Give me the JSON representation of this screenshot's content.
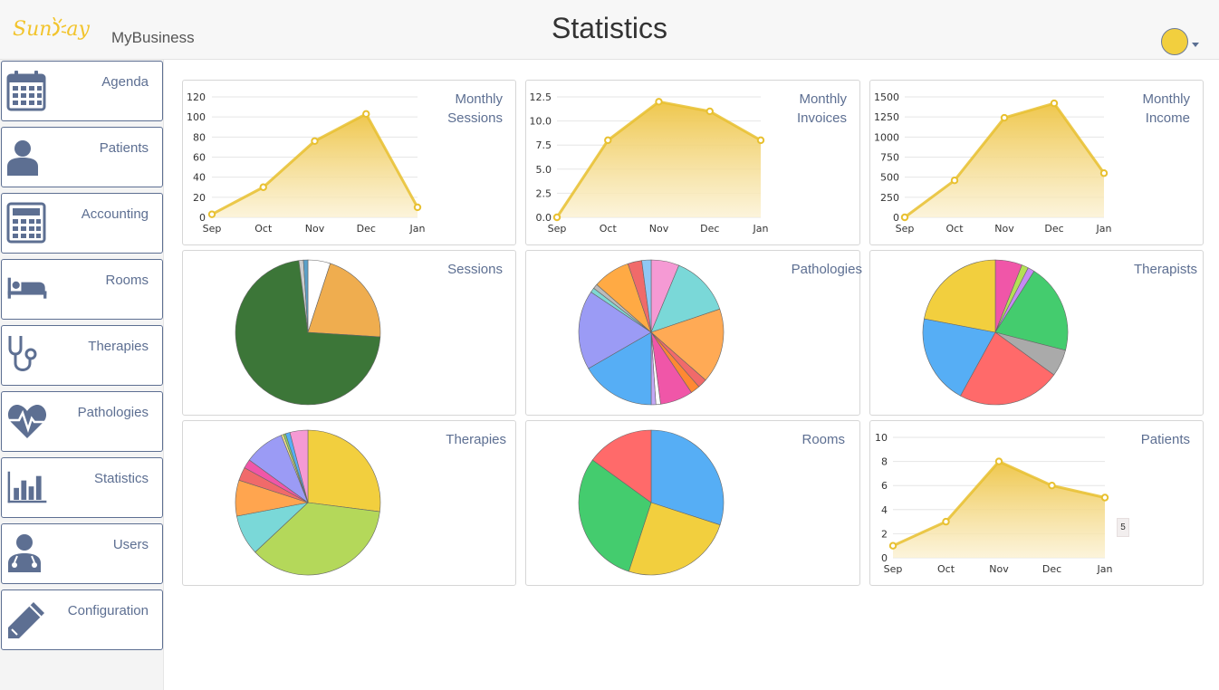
{
  "header": {
    "logo_text_1": "Sun",
    "logo_text_2": "ay",
    "app_name": "MyBusiness",
    "title": "Statistics"
  },
  "sidebar": {
    "items": [
      {
        "label": "Agenda",
        "icon": "calendar-icon"
      },
      {
        "label": "Patients",
        "icon": "person-icon"
      },
      {
        "label": "Accounting",
        "icon": "calculator-icon"
      },
      {
        "label": "Rooms",
        "icon": "bed-icon"
      },
      {
        "label": "Therapies",
        "icon": "stethoscope-icon"
      },
      {
        "label": "Pathologies",
        "icon": "heartbeat-icon"
      },
      {
        "label": "Statistics",
        "icon": "bar-chart-icon"
      },
      {
        "label": "Users",
        "icon": "doctor-icon"
      },
      {
        "label": "Configuration",
        "icon": "pencil-icon"
      }
    ]
  },
  "colors": {
    "accent": "#5d6f92",
    "line": "#e8c02f",
    "brand": "#f2c42c"
  },
  "cards": {
    "monthly_sessions": {
      "title_1": "Monthly",
      "title_2": "Sessions"
    },
    "monthly_invoices": {
      "title_1": "Monthly",
      "title_2": "Invoices"
    },
    "monthly_income": {
      "title_1": "Monthly",
      "title_2": "Income"
    },
    "sessions": {
      "title": "Sessions"
    },
    "pathologies": {
      "title": "Pathologies"
    },
    "therapists": {
      "title": "Therapists"
    },
    "therapies": {
      "title": "Therapies"
    },
    "rooms": {
      "title": "Rooms"
    },
    "patients": {
      "title": "Patients"
    }
  },
  "tooltip": {
    "value": "5"
  },
  "chart_data": [
    {
      "id": "monthly_sessions",
      "type": "area",
      "categories": [
        "Sep",
        "Oct",
        "Nov",
        "Dec",
        "Jan"
      ],
      "values": [
        3,
        30,
        76,
        103,
        10
      ],
      "yticks": [
        "0",
        "20",
        "40",
        "60",
        "80",
        "100",
        "120"
      ],
      "ylim": [
        0,
        120
      ]
    },
    {
      "id": "monthly_invoices",
      "type": "area",
      "categories": [
        "Sep",
        "Oct",
        "Nov",
        "Dec",
        "Jan"
      ],
      "values": [
        0,
        8,
        12,
        11,
        8
      ],
      "yticks": [
        "0.0",
        "2.5",
        "5.0",
        "7.5",
        "10.0",
        "12.5"
      ],
      "ylim": [
        0,
        12.5
      ]
    },
    {
      "id": "monthly_income",
      "type": "area",
      "categories": [
        "Sep",
        "Oct",
        "Nov",
        "Dec",
        "Jan"
      ],
      "values": [
        0,
        460,
        1240,
        1420,
        550
      ],
      "yticks": [
        "0",
        "250",
        "500",
        "750",
        "1000",
        "1250",
        "1500"
      ],
      "ylim": [
        0,
        1500
      ]
    },
    {
      "id": "sessions",
      "type": "pie",
      "values": [
        5,
        21,
        72,
        1,
        1
      ],
      "colors": [
        "#ffffff",
        "#efad4f",
        "#3c7638",
        "#cccccc",
        "#5aa0c8"
      ]
    },
    {
      "id": "pathologies",
      "type": "pie",
      "values": [
        6,
        13,
        16,
        2,
        2,
        7,
        1,
        1,
        16,
        17,
        1,
        1,
        8,
        3,
        2
      ],
      "colors": [
        "#f59ad4",
        "#7ad8d8",
        "#ffaa55",
        "#f06a6a",
        "#ff8833",
        "#f056a8",
        "#ffffff",
        "#c5a8f5",
        "#56aef5",
        "#9b9bf5",
        "#7fd8d2",
        "#bbbbbb",
        "#ffaa44",
        "#f06a6a",
        "#8fc8f5"
      ]
    },
    {
      "id": "therapists",
      "type": "pie",
      "values": [
        6,
        1.5,
        1.5,
        20,
        6,
        23,
        20,
        22
      ],
      "colors": [
        "#f056a8",
        "#b4e056",
        "#c58af5",
        "#44cc6e",
        "#aaaaaa",
        "#ff6a6a",
        "#56aef5",
        "#f2cf3e"
      ]
    },
    {
      "id": "therapies",
      "type": "pie",
      "values": [
        27,
        36,
        9,
        8,
        3,
        2,
        9,
        0.5,
        0.5,
        1,
        4
      ],
      "colors": [
        "#f2cf3e",
        "#b4d85a",
        "#7ad8d8",
        "#ffa54f",
        "#f06a6a",
        "#f056a8",
        "#9b9bf5",
        "#f5e68a",
        "#8ecf6a",
        "#56aef5",
        "#f59ad4"
      ]
    },
    {
      "id": "rooms",
      "type": "pie",
      "values": [
        30,
        25,
        30,
        15
      ],
      "colors": [
        "#56aef5",
        "#f2cf3e",
        "#44cc6e",
        "#ff6a6a"
      ]
    },
    {
      "id": "patients",
      "type": "area",
      "categories": [
        "Sep",
        "Oct",
        "Nov",
        "Dec",
        "Jan"
      ],
      "values": [
        1,
        3,
        8,
        6,
        5
      ],
      "yticks": [
        "0",
        "2",
        "4",
        "6",
        "8",
        "10"
      ],
      "ylim": [
        0,
        10
      ]
    }
  ]
}
